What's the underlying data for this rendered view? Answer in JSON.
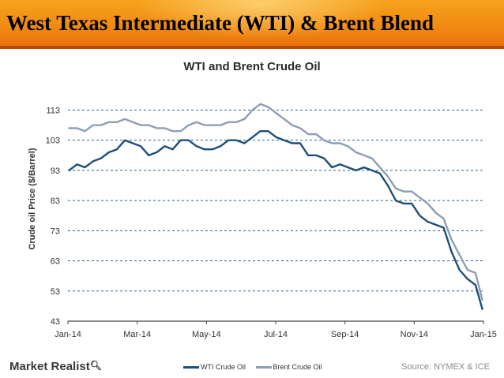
{
  "header": {
    "title": "West Texas Intermediate (WTI) & Brent Blend"
  },
  "footer": {
    "brand": "Market Realist",
    "brand_icon": "magnifier-icon",
    "source": "Source: NYMEX & ICE"
  },
  "colors": {
    "header_bg": "#f08a12",
    "wti": "#1f4e79",
    "brent": "#8e9db5"
  },
  "chart_data": {
    "type": "line",
    "title": "WTI and Brent Crude Oil",
    "ylabel": "Crude oil Price ($/Barrel)",
    "xlabel": "",
    "ylim": [
      43,
      116
    ],
    "y_ticks": [
      113,
      103,
      93,
      83,
      73,
      63,
      53,
      43
    ],
    "x_ticks": [
      "Jan-14",
      "Mar-14",
      "May-14",
      "Jul-14",
      "Sep-14",
      "Nov-14",
      "Jan-15"
    ],
    "grid": "horizontal-dashed",
    "legend_position": "bottom",
    "series": [
      {
        "name": "WTI Crude Oil",
        "color": "#1f4e79",
        "x": [
          "2014-01-02",
          "2014-01-09",
          "2014-01-16",
          "2014-01-23",
          "2014-01-30",
          "2014-02-06",
          "2014-02-13",
          "2014-02-20",
          "2014-02-27",
          "2014-03-06",
          "2014-03-13",
          "2014-03-20",
          "2014-03-27",
          "2014-04-03",
          "2014-04-10",
          "2014-04-17",
          "2014-04-24",
          "2014-05-01",
          "2014-05-08",
          "2014-05-15",
          "2014-05-22",
          "2014-05-29",
          "2014-06-05",
          "2014-06-12",
          "2014-06-19",
          "2014-06-26",
          "2014-07-03",
          "2014-07-10",
          "2014-07-17",
          "2014-07-24",
          "2014-07-31",
          "2014-08-07",
          "2014-08-14",
          "2014-08-21",
          "2014-08-28",
          "2014-09-04",
          "2014-09-11",
          "2014-09-18",
          "2014-09-25",
          "2014-10-02",
          "2014-10-09",
          "2014-10-16",
          "2014-10-23",
          "2014-10-30",
          "2014-11-06",
          "2014-11-13",
          "2014-11-20",
          "2014-11-27",
          "2014-12-04",
          "2014-12-11",
          "2014-12-18",
          "2014-12-25",
          "2014-12-31"
        ],
        "values": [
          93,
          95,
          94,
          96,
          97,
          99,
          100,
          103,
          102,
          101,
          98,
          99,
          101,
          100,
          103,
          103,
          101,
          100,
          100,
          101,
          103,
          103,
          102,
          104,
          106,
          106,
          104,
          103,
          102,
          102,
          98,
          98,
          97,
          94,
          95,
          94,
          93,
          94,
          93,
          92,
          88,
          83,
          82,
          82,
          78,
          76,
          75,
          74,
          66,
          60,
          57,
          55,
          47
        ]
      },
      {
        "name": "Brent Crude Oil",
        "color": "#8e9db5",
        "x": [
          "2014-01-02",
          "2014-01-09",
          "2014-01-16",
          "2014-01-23",
          "2014-01-30",
          "2014-02-06",
          "2014-02-13",
          "2014-02-20",
          "2014-02-27",
          "2014-03-06",
          "2014-03-13",
          "2014-03-20",
          "2014-03-27",
          "2014-04-03",
          "2014-04-10",
          "2014-04-17",
          "2014-04-24",
          "2014-05-01",
          "2014-05-08",
          "2014-05-15",
          "2014-05-22",
          "2014-05-29",
          "2014-06-05",
          "2014-06-12",
          "2014-06-19",
          "2014-06-26",
          "2014-07-03",
          "2014-07-10",
          "2014-07-17",
          "2014-07-24",
          "2014-07-31",
          "2014-08-07",
          "2014-08-14",
          "2014-08-21",
          "2014-08-28",
          "2014-09-04",
          "2014-09-11",
          "2014-09-18",
          "2014-09-25",
          "2014-10-02",
          "2014-10-09",
          "2014-10-16",
          "2014-10-23",
          "2014-10-30",
          "2014-11-06",
          "2014-11-13",
          "2014-11-20",
          "2014-11-27",
          "2014-12-04",
          "2014-12-11",
          "2014-12-18",
          "2014-12-25",
          "2014-12-31"
        ],
        "values": [
          107,
          107,
          106,
          108,
          108,
          109,
          109,
          110,
          109,
          108,
          108,
          107,
          107,
          106,
          106,
          108,
          109,
          108,
          108,
          108,
          109,
          109,
          110,
          113,
          115,
          114,
          112,
          110,
          108,
          107,
          105,
          105,
          103,
          102,
          102,
          101,
          99,
          98,
          97,
          94,
          91,
          87,
          86,
          86,
          84,
          82,
          79,
          77,
          70,
          65,
          60,
          59,
          50
        ]
      }
    ]
  }
}
